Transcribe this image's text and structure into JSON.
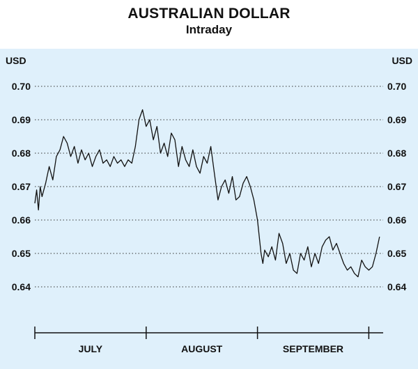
{
  "chart_data": {
    "type": "line",
    "title": "AUSTRALIAN DOLLAR",
    "subtitle": "Intraday",
    "y_unit_left": "USD",
    "y_unit_right": "USD",
    "ylim": [
      0.63,
      0.705
    ],
    "yticks": [
      "0.70",
      "0.69",
      "0.68",
      "0.67",
      "0.66",
      "0.65",
      "0.64"
    ],
    "ytick_values": [
      0.7,
      0.69,
      0.68,
      0.67,
      0.66,
      0.65,
      0.64
    ],
    "months": [
      "JULY",
      "AUGUST",
      "SEPTEMBER"
    ],
    "x_range_days": [
      0,
      97
    ],
    "month_boundaries_days": [
      0,
      31,
      62,
      93
    ],
    "grid": "horizontal dotted",
    "background_color": "#dff0fb",
    "line_color": "#111111",
    "series": [
      {
        "x": [
          0,
          0.5,
          1,
          1.5,
          2,
          3,
          4,
          5,
          6,
          7,
          8,
          9,
          10,
          11,
          12,
          13,
          14,
          15,
          16,
          17,
          18,
          19,
          20,
          21,
          22,
          23,
          24,
          25,
          26,
          27,
          28,
          29,
          30,
          31,
          32,
          33,
          34,
          35,
          36,
          37,
          38,
          39,
          40,
          41,
          42,
          43,
          44,
          45,
          46,
          47,
          48,
          49,
          50,
          51,
          52,
          53,
          54,
          55,
          56,
          57,
          58,
          59,
          60,
          61,
          62,
          63,
          63.5,
          64,
          65,
          66,
          67,
          68,
          69,
          70,
          71,
          72,
          73,
          74,
          75,
          76,
          77,
          78,
          79,
          80,
          81,
          82,
          83,
          84,
          85,
          86,
          87,
          88,
          89,
          90,
          91,
          92,
          93,
          94,
          95,
          96
        ],
        "y": [
          0.665,
          0.669,
          0.663,
          0.67,
          0.667,
          0.671,
          0.676,
          0.672,
          0.679,
          0.681,
          0.685,
          0.683,
          0.679,
          0.682,
          0.677,
          0.681,
          0.678,
          0.68,
          0.676,
          0.679,
          0.681,
          0.677,
          0.678,
          0.676,
          0.679,
          0.677,
          0.678,
          0.676,
          0.678,
          0.677,
          0.682,
          0.69,
          0.693,
          0.688,
          0.69,
          0.684,
          0.688,
          0.68,
          0.683,
          0.679,
          0.686,
          0.684,
          0.676,
          0.682,
          0.678,
          0.676,
          0.681,
          0.676,
          0.674,
          0.679,
          0.677,
          0.682,
          0.674,
          0.666,
          0.67,
          0.672,
          0.668,
          0.673,
          0.666,
          0.667,
          0.671,
          0.673,
          0.67,
          0.666,
          0.66,
          0.65,
          0.647,
          0.651,
          0.649,
          0.652,
          0.648,
          0.656,
          0.653,
          0.647,
          0.65,
          0.645,
          0.644,
          0.65,
          0.648,
          0.652,
          0.646,
          0.65,
          0.647,
          0.652,
          0.654,
          0.655,
          0.651,
          0.653,
          0.65,
          0.647,
          0.645,
          0.646,
          0.644,
          0.643,
          0.648,
          0.646,
          0.645,
          0.646,
          0.65,
          0.655
        ]
      }
    ]
  }
}
